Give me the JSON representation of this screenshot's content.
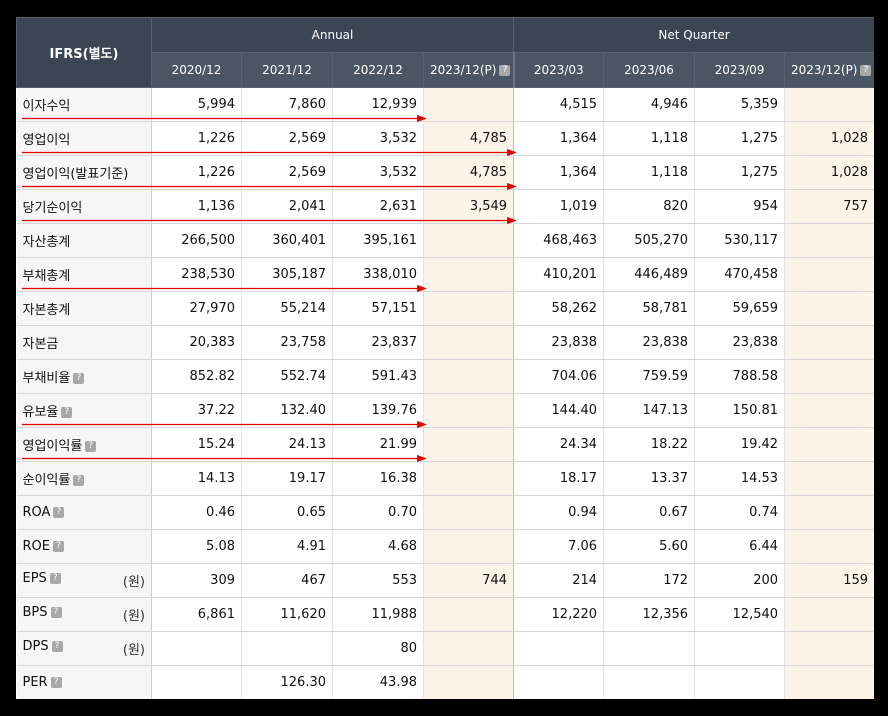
{
  "header": {
    "corner": "IFRS(별도)",
    "groups": [
      "Annual",
      "Net Quarter"
    ],
    "periods": [
      "2020/12",
      "2021/12",
      "2022/12",
      "2023/12(P)",
      "2023/03",
      "2023/06",
      "2023/09",
      "2023/12(P)"
    ],
    "info_icon": "question-icon"
  },
  "rows": [
    {
      "label": "이자수익",
      "icon": false,
      "unit": "",
      "values": [
        "5,994",
        "7,860",
        "12,939",
        "",
        "4,515",
        "4,946",
        "5,359",
        ""
      ]
    },
    {
      "label": "영업이익",
      "icon": false,
      "unit": "",
      "values": [
        "1,226",
        "2,569",
        "3,532",
        "4,785",
        "1,364",
        "1,118",
        "1,275",
        "1,028"
      ]
    },
    {
      "label": "영업이익(발표기준)",
      "icon": false,
      "unit": "",
      "values": [
        "1,226",
        "2,569",
        "3,532",
        "4,785",
        "1,364",
        "1,118",
        "1,275",
        "1,028"
      ]
    },
    {
      "label": "당기순이익",
      "icon": false,
      "unit": "",
      "values": [
        "1,136",
        "2,041",
        "2,631",
        "3,549",
        "1,019",
        "820",
        "954",
        "757"
      ]
    },
    {
      "label": "자산총계",
      "icon": false,
      "unit": "",
      "values": [
        "266,500",
        "360,401",
        "395,161",
        "",
        "468,463",
        "505,270",
        "530,117",
        ""
      ]
    },
    {
      "label": "부채총계",
      "icon": false,
      "unit": "",
      "values": [
        "238,530",
        "305,187",
        "338,010",
        "",
        "410,201",
        "446,489",
        "470,458",
        ""
      ]
    },
    {
      "label": "자본총계",
      "icon": false,
      "unit": "",
      "values": [
        "27,970",
        "55,214",
        "57,151",
        "",
        "58,262",
        "58,781",
        "59,659",
        ""
      ]
    },
    {
      "label": "자본금",
      "icon": false,
      "unit": "",
      "values": [
        "20,383",
        "23,758",
        "23,837",
        "",
        "23,838",
        "23,838",
        "23,838",
        ""
      ]
    },
    {
      "label": "부채비율",
      "icon": true,
      "unit": "",
      "values": [
        "852.82",
        "552.74",
        "591.43",
        "",
        "704.06",
        "759.59",
        "788.58",
        ""
      ]
    },
    {
      "label": "유보율",
      "icon": true,
      "unit": "",
      "values": [
        "37.22",
        "132.40",
        "139.76",
        "",
        "144.40",
        "147.13",
        "150.81",
        ""
      ]
    },
    {
      "label": "영업이익률",
      "icon": true,
      "unit": "",
      "values": [
        "15.24",
        "24.13",
        "21.99",
        "",
        "24.34",
        "18.22",
        "19.42",
        ""
      ]
    },
    {
      "label": "순이익률",
      "icon": true,
      "unit": "",
      "values": [
        "14.13",
        "19.17",
        "16.38",
        "",
        "18.17",
        "13.37",
        "14.53",
        ""
      ]
    },
    {
      "label": "ROA",
      "icon": true,
      "unit": "",
      "values": [
        "0.46",
        "0.65",
        "0.70",
        "",
        "0.94",
        "0.67",
        "0.74",
        ""
      ]
    },
    {
      "label": "ROE",
      "icon": true,
      "unit": "",
      "values": [
        "5.08",
        "4.91",
        "4.68",
        "",
        "7.06",
        "5.60",
        "6.44",
        ""
      ]
    },
    {
      "label": "EPS",
      "icon": true,
      "unit": "(원)",
      "values": [
        "309",
        "467",
        "553",
        "744",
        "214",
        "172",
        "200",
        "159"
      ]
    },
    {
      "label": "BPS",
      "icon": true,
      "unit": "(원)",
      "values": [
        "6,861",
        "11,620",
        "11,988",
        "",
        "12,220",
        "12,356",
        "12,540",
        ""
      ]
    },
    {
      "label": "DPS",
      "icon": true,
      "unit": "(원)",
      "values": [
        "",
        "",
        "80",
        "",
        "",
        "",
        "",
        ""
      ]
    },
    {
      "label": "PER",
      "icon": true,
      "unit": "",
      "values": [
        "",
        "126.30",
        "43.98",
        "",
        "",
        "",
        "",
        ""
      ]
    }
  ],
  "annotations": {
    "arrow_color": "#e00000",
    "arrows": [
      {
        "row": "이자수익",
        "to": "2023/12(P)"
      },
      {
        "row": "영업이익",
        "to": "2023/03"
      },
      {
        "row": "영업이익(발표기준)",
        "to": "2023/03"
      },
      {
        "row": "당기순이익",
        "to": "2023/03"
      },
      {
        "row": "부채총계",
        "to": "2023/12(P)"
      },
      {
        "row": "유보율",
        "to": "2023/12(P)"
      },
      {
        "row": "영업이익률",
        "to": "2023/12(P)"
      }
    ]
  }
}
